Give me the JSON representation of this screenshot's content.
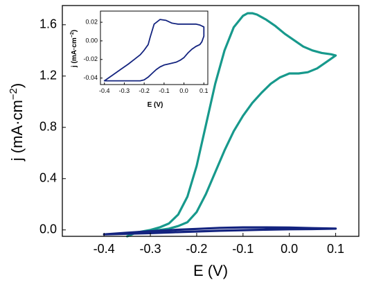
{
  "chart_data": [
    {
      "type": "line",
      "role": "main",
      "xlabel": "E (V)",
      "ylabel_base": "j (mA·cm",
      "ylabel_sup": "−2",
      "ylabel_close": ")",
      "xlim": [
        -0.49,
        0.15
      ],
      "ylim": [
        -0.05,
        1.75
      ],
      "x_ticks": [
        -0.4,
        -0.3,
        -0.2,
        -0.1,
        0.0,
        0.1
      ],
      "x_tick_labels": [
        "-0.4",
        "-0.3",
        "-0.2",
        "-0.1",
        "0.0",
        "0.1"
      ],
      "y_ticks": [
        0.0,
        0.4,
        0.8,
        1.2,
        1.6
      ],
      "y_tick_labels": [
        "0.0",
        "0.4",
        "0.8",
        "1.2",
        "1.6"
      ],
      "grid": false,
      "series": [
        {
          "color": "#17998c",
          "x": [
            -0.35,
            -0.33,
            -0.3,
            -0.28,
            -0.26,
            -0.24,
            -0.22,
            -0.2,
            -0.18,
            -0.16,
            -0.14,
            -0.12,
            -0.1,
            -0.09,
            -0.08,
            -0.07,
            -0.05,
            -0.03,
            -0.01,
            0.01,
            0.03,
            0.05,
            0.07,
            0.09,
            0.1,
            0.08,
            0.06,
            0.04,
            0.02,
            0.0,
            -0.02,
            -0.04,
            -0.06,
            -0.08,
            -0.1,
            -0.12,
            -0.14,
            -0.16,
            -0.18,
            -0.2,
            -0.22,
            -0.24,
            -0.26,
            -0.28,
            -0.3,
            -0.32,
            -0.34
          ],
          "y": [
            -0.05,
            -0.02,
            0.0,
            0.02,
            0.05,
            0.12,
            0.26,
            0.5,
            0.82,
            1.14,
            1.4,
            1.58,
            1.67,
            1.69,
            1.69,
            1.68,
            1.64,
            1.59,
            1.53,
            1.48,
            1.43,
            1.4,
            1.38,
            1.37,
            1.36,
            1.31,
            1.26,
            1.23,
            1.22,
            1.22,
            1.19,
            1.14,
            1.07,
            0.99,
            0.89,
            0.77,
            0.62,
            0.45,
            0.28,
            0.14,
            0.06,
            0.03,
            0.01,
            0.0,
            -0.01,
            -0.02,
            -0.03
          ]
        },
        {
          "color": "#13237f",
          "x": [
            -0.4,
            -0.35,
            -0.3,
            -0.25,
            -0.2,
            -0.15,
            -0.1,
            -0.05,
            0.0,
            0.05,
            0.1,
            0.05,
            0.0,
            -0.05,
            -0.1,
            -0.15,
            -0.2,
            -0.25,
            -0.3,
            -0.35,
            -0.4
          ],
          "y": [
            -0.035,
            -0.03,
            -0.025,
            -0.018,
            -0.012,
            -0.006,
            -0.002,
            0.002,
            0.005,
            0.007,
            0.01,
            0.014,
            0.018,
            0.02,
            0.02,
            0.016,
            0.008,
            0.0,
            -0.01,
            -0.022,
            -0.035
          ]
        }
      ]
    },
    {
      "type": "line",
      "role": "inset",
      "xlabel": "E (V)",
      "ylabel_base": "j (mA·cm",
      "ylabel_sup": "−2",
      "ylabel_close": ")",
      "xlim": [
        -0.42,
        0.12
      ],
      "ylim": [
        -0.047,
        0.032
      ],
      "x_ticks": [
        -0.4,
        -0.3,
        -0.2,
        -0.1,
        0.0,
        0.1
      ],
      "x_tick_labels": [
        "-0.4",
        "-0.3",
        "-0.2",
        "-0.1",
        "0.0",
        "0.1"
      ],
      "y_ticks": [
        -0.04,
        -0.02,
        0.0,
        0.02
      ],
      "y_tick_labels": [
        "-0.04",
        "-0.02",
        "0.00",
        "0.02"
      ],
      "grid": false,
      "series": [
        {
          "color": "#13237f",
          "x": [
            -0.4,
            -0.36,
            -0.32,
            -0.28,
            -0.25,
            -0.22,
            -0.2,
            -0.18,
            -0.17,
            -0.15,
            -0.12,
            -0.09,
            -0.06,
            -0.03,
            0.0,
            0.03,
            0.06,
            0.08,
            0.09,
            0.1,
            0.1,
            0.09,
            0.08,
            0.06,
            0.04,
            0.02,
            0.0,
            -0.02,
            -0.04,
            -0.06,
            -0.08,
            -0.1,
            -0.12,
            -0.14,
            -0.16,
            -0.18,
            -0.2,
            -0.22,
            -0.25,
            -0.28,
            -0.31,
            -0.34,
            -0.37,
            -0.4
          ],
          "y": [
            -0.043,
            -0.037,
            -0.031,
            -0.025,
            -0.02,
            -0.015,
            -0.01,
            -0.004,
            0.004,
            0.018,
            0.023,
            0.022,
            0.019,
            0.018,
            0.018,
            0.018,
            0.018,
            0.017,
            0.016,
            0.015,
            0.005,
            -0.001,
            -0.004,
            -0.006,
            -0.009,
            -0.013,
            -0.018,
            -0.021,
            -0.023,
            -0.024,
            -0.025,
            -0.026,
            -0.028,
            -0.031,
            -0.035,
            -0.039,
            -0.042,
            -0.043,
            -0.043,
            -0.043,
            -0.043,
            -0.043,
            -0.043,
            -0.043
          ]
        }
      ]
    }
  ]
}
